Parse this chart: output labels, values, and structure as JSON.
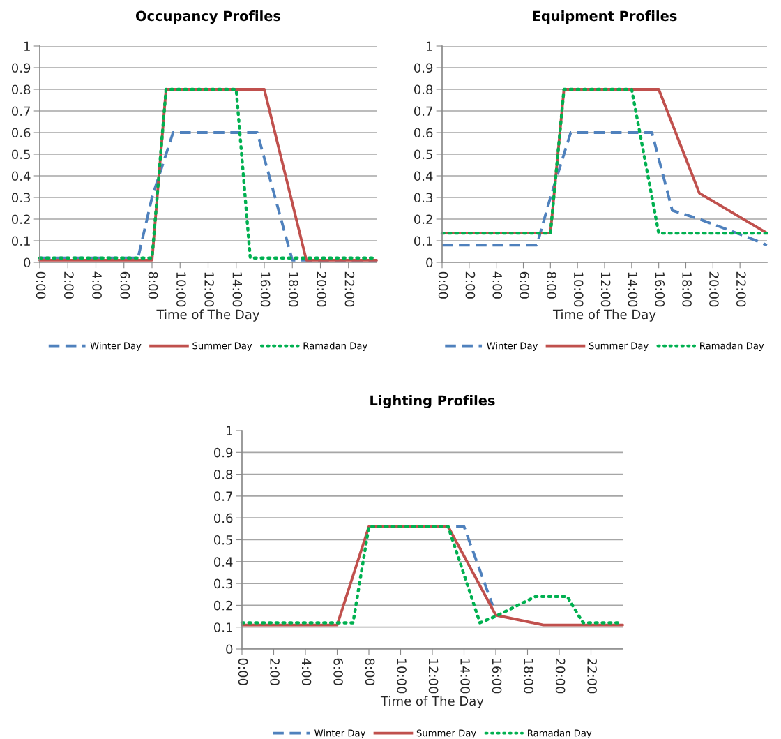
{
  "chart_data": [
    {
      "type": "line",
      "title": "Occupancy Profiles",
      "xlabel": "Time of The Day",
      "xlim": [
        0,
        24
      ],
      "xticks": [
        {
          "value": 0,
          "label": "0:00"
        },
        {
          "value": 2,
          "label": "2:00"
        },
        {
          "value": 4,
          "label": "4:00"
        },
        {
          "value": 6,
          "label": "6:00"
        },
        {
          "value": 8,
          "label": "8:00"
        },
        {
          "value": 10,
          "label": "10:00"
        },
        {
          "value": 12,
          "label": "12:00"
        },
        {
          "value": 14,
          "label": "14:00"
        },
        {
          "value": 16,
          "label": "16:00"
        },
        {
          "value": 18,
          "label": "18:00"
        },
        {
          "value": 20,
          "label": "20:00"
        },
        {
          "value": 22,
          "label": "22:00"
        }
      ],
      "ylim": [
        0,
        1
      ],
      "yticks": [
        0,
        0.1,
        0.2,
        0.3,
        0.4,
        0.5,
        0.6,
        0.7,
        0.8,
        0.9,
        1
      ],
      "grid": "y",
      "legend": "bottom",
      "marker": "none",
      "series": [
        {
          "name": "Winter Day",
          "color": "#4f81bd",
          "line_style": "dashed",
          "x": [
            0,
            7,
            8,
            9.5,
            15.5,
            18,
            24
          ],
          "values": [
            0.02,
            0.02,
            0.3,
            0.6,
            0.6,
            0.01,
            0.01
          ]
        },
        {
          "name": "Summer Day",
          "color": "#c0504d",
          "line_style": "solid",
          "x": [
            0,
            8,
            9,
            16,
            19,
            24
          ],
          "values": [
            0.01,
            0.01,
            0.8,
            0.8,
            0.01,
            0.01
          ]
        },
        {
          "name": "Ramadan Day",
          "color": "#00b050",
          "line_style": "dotted",
          "x": [
            0,
            8,
            9,
            14,
            15,
            24
          ],
          "values": [
            0.02,
            0.02,
            0.8,
            0.8,
            0.02,
            0.02
          ]
        }
      ]
    },
    {
      "type": "line",
      "title": "Equipment Profiles",
      "xlabel": "Time of The Day",
      "xlim": [
        0,
        24
      ],
      "xticks": [
        {
          "value": 0,
          "label": "0:00"
        },
        {
          "value": 2,
          "label": "2:00"
        },
        {
          "value": 4,
          "label": "4:00"
        },
        {
          "value": 6,
          "label": "6:00"
        },
        {
          "value": 8,
          "label": "8:00"
        },
        {
          "value": 10,
          "label": "10:00"
        },
        {
          "value": 12,
          "label": "12:00"
        },
        {
          "value": 14,
          "label": "14:00"
        },
        {
          "value": 16,
          "label": "16:00"
        },
        {
          "value": 18,
          "label": "18:00"
        },
        {
          "value": 20,
          "label": "20:00"
        },
        {
          "value": 22,
          "label": "22:00"
        }
      ],
      "ylim": [
        0,
        1
      ],
      "yticks": [
        0,
        0.1,
        0.2,
        0.3,
        0.4,
        0.5,
        0.6,
        0.7,
        0.8,
        0.9,
        1
      ],
      "grid": "y",
      "legend": "bottom",
      "marker": "none",
      "series": [
        {
          "name": "Winter Day",
          "color": "#4f81bd",
          "line_style": "dashed",
          "x": [
            0,
            7,
            8,
            9.5,
            15.5,
            17,
            19,
            22,
            24
          ],
          "values": [
            0.08,
            0.08,
            0.3,
            0.6,
            0.6,
            0.24,
            0.2,
            0.13,
            0.08
          ]
        },
        {
          "name": "Summer Day",
          "color": "#c0504d",
          "line_style": "solid",
          "x": [
            0,
            8,
            9,
            16,
            19,
            24
          ],
          "values": [
            0.135,
            0.135,
            0.8,
            0.8,
            0.32,
            0.135
          ]
        },
        {
          "name": "Ramadan Day",
          "color": "#00b050",
          "line_style": "dotted",
          "x": [
            0,
            8,
            9,
            14,
            16,
            24
          ],
          "values": [
            0.135,
            0.135,
            0.8,
            0.8,
            0.135,
            0.135
          ]
        }
      ]
    },
    {
      "type": "line",
      "title": "Lighting Profiles",
      "xlabel": "Time of The Day",
      "xlim": [
        0,
        24
      ],
      "xticks": [
        {
          "value": 0,
          "label": "0:00"
        },
        {
          "value": 2,
          "label": "2:00"
        },
        {
          "value": 4,
          "label": "4:00"
        },
        {
          "value": 6,
          "label": "6:00"
        },
        {
          "value": 8,
          "label": "8:00"
        },
        {
          "value": 10,
          "label": "10:00"
        },
        {
          "value": 12,
          "label": "12:00"
        },
        {
          "value": 14,
          "label": "14:00"
        },
        {
          "value": 16,
          "label": "16:00"
        },
        {
          "value": 18,
          "label": "18:00"
        },
        {
          "value": 20,
          "label": "20:00"
        },
        {
          "value": 22,
          "label": "22:00"
        }
      ],
      "ylim": [
        0,
        1
      ],
      "yticks": [
        0,
        0.1,
        0.2,
        0.3,
        0.4,
        0.5,
        0.6,
        0.7,
        0.8,
        0.9,
        1
      ],
      "grid": "y",
      "legend": "bottom",
      "marker": "none",
      "series": [
        {
          "name": "Winter Day",
          "color": "#4f81bd",
          "line_style": "dashed",
          "x": [
            13.5,
            14,
            15.8
          ],
          "values": [
            0.56,
            0.56,
            0.2
          ]
        },
        {
          "name": "Summer Day",
          "color": "#c0504d",
          "line_style": "solid",
          "x": [
            0,
            6,
            8,
            13,
            16,
            19,
            24
          ],
          "values": [
            0.11,
            0.11,
            0.56,
            0.56,
            0.155,
            0.11,
            0.11
          ]
        },
        {
          "name": "Ramadan Day",
          "color": "#00b050",
          "line_style": "dotted",
          "x": [
            0,
            7,
            8,
            13,
            15,
            16,
            18.5,
            20.5,
            21.5,
            24
          ],
          "values": [
            0.12,
            0.12,
            0.56,
            0.56,
            0.12,
            0.15,
            0.24,
            0.24,
            0.12,
            0.12
          ]
        }
      ]
    }
  ]
}
